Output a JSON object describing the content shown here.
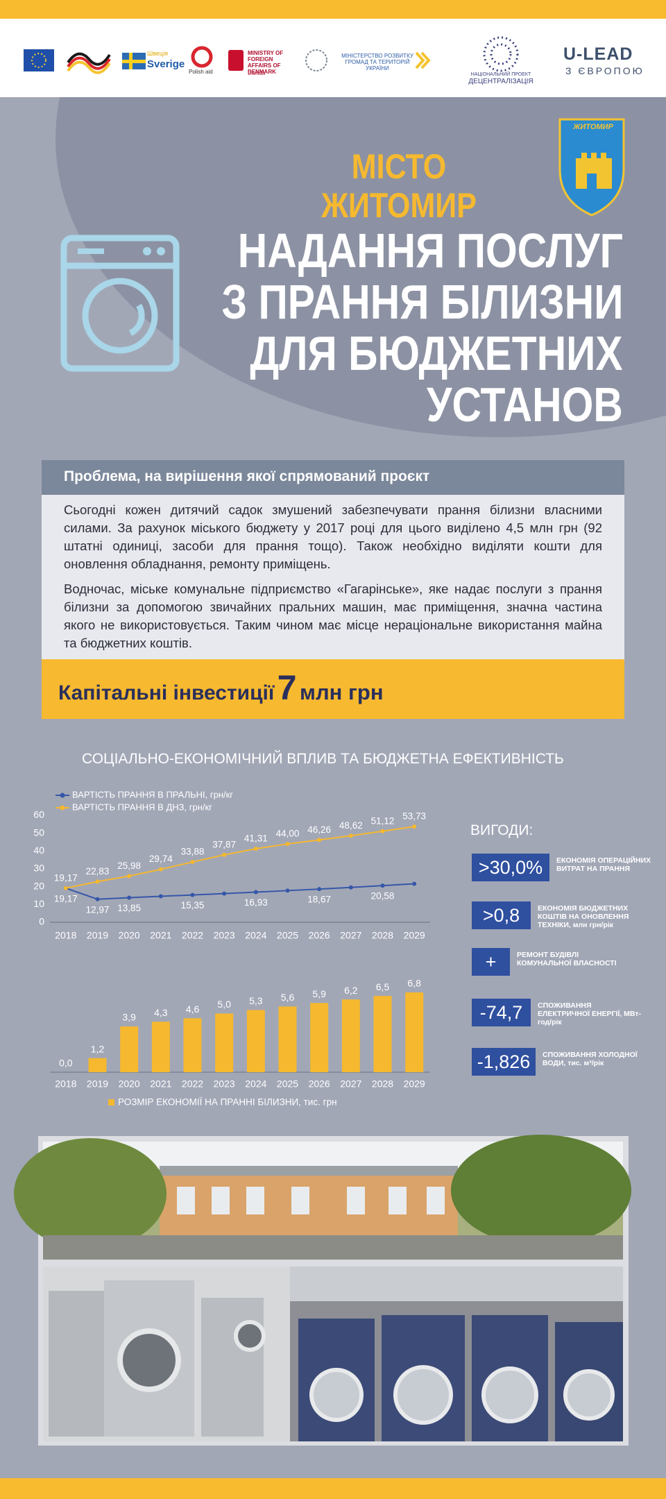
{
  "header": {
    "logos": {
      "sweden_ua": "Швеція",
      "sweden": "Sverige",
      "polish_aid": "Polish aid",
      "denmark": "MINISTRY OF FOREIGN AFFAIRS OF DENMARK",
      "danida": "Danida",
      "ministry_ua": "МІНІСТЕРСТВО РОЗВИТКУ ГРОМАД ТА ТЕРИТОРІЙ УКРАЇНИ",
      "decentralization_top": "НАЦІОНАЛЬНИЙ ПРОЕКТ",
      "decentralization": "ДЕЦЕНТРАЛІЗАЦІЯ",
      "ulead": "U-LEAD",
      "ulead_sub": "З ЄВРОПОЮ"
    }
  },
  "city": {
    "title": "МІСТО ЖИТОМИР",
    "arms_label": "ЖИТОМИР"
  },
  "title_lines": [
    "НАДАННЯ ПОСЛУГ",
    "З ПРАННЯ БІЛИЗНИ",
    "ДЛЯ БЮДЖЕТНИХ",
    "УСТАНОВ"
  ],
  "problem": {
    "heading": "Проблема, на вирішення якої спрямований проєкт",
    "paragraphs": [
      "Сьогодні кожен дитячий садок змушений забезпечувати прання білизни власними силами. За рахунок міського бюджету у 2017 році для цього виділено 4,5 млн грн (92 штатні одиниці, засоби для прання тощо). Також необхідно виділяти кошти для оновлення обладнання, ремонту приміщень.",
      "Водночас, міське комунальне підприємство «Гагарінське», яке надає послуги з прання білизни за допомогою звичайних пральних машин, має приміщення, значна частина якого не використовується. Таким чином має місце нераціональне використання майна та бюджетних коштів."
    ]
  },
  "investment": {
    "label": "Капітальні інвестиції",
    "amount": "7",
    "unit": "млн грн"
  },
  "impact_title": "СОЦІАЛЬНО-ЕКОНОМІЧНИЙ ВПЛИВ ТА БЮДЖЕТНА ЕФЕКТИВНІСТЬ",
  "chart_data": [
    {
      "type": "line",
      "categories": [
        "2018",
        "2019",
        "2020",
        "2021",
        "2022",
        "2023",
        "2024",
        "2025",
        "2026",
        "2027",
        "2028",
        "2029"
      ],
      "series": [
        {
          "name": "ВАРТІСТЬ ПРАННЯ В ПРАЛЬНІ, грн/кг",
          "color": "#3557a8",
          "values": [
            19.17,
            12.97,
            13.85,
            14.6,
            15.35,
            16.1,
            16.93,
            17.8,
            18.67,
            19.6,
            20.58,
            21.6
          ],
          "value_labels": [
            "19,17",
            "12,97",
            "13,85",
            null,
            "15,35",
            null,
            "16,93",
            null,
            "18,67",
            null,
            "20,58",
            null
          ]
        },
        {
          "name": "ВАРТІСТЬ ПРАННЯ В ДНЗ, грн/кг",
          "color": "#f5b82e",
          "values": [
            19.17,
            22.83,
            25.98,
            29.74,
            33.88,
            37.87,
            41.31,
            44.0,
            46.26,
            48.62,
            51.12,
            53.73
          ],
          "value_labels": [
            "19,17",
            "22,83",
            "25,98",
            "29,74",
            "33,88",
            "37,87",
            "41,31",
            "44,00",
            "46,26",
            "48,62",
            "51,12",
            "53,73"
          ]
        }
      ],
      "ylim": [
        0,
        60
      ],
      "yticks": [
        0,
        10,
        20,
        30,
        40,
        50,
        60
      ],
      "grid": false
    },
    {
      "type": "bar",
      "categories": [
        "2018",
        "2019",
        "2020",
        "2021",
        "2022",
        "2023",
        "2024",
        "2025",
        "2026",
        "2027",
        "2028",
        "2029"
      ],
      "series": [
        {
          "name": "РОЗМІР ЕКОНОМІЇ НА ПРАННІ БІЛИЗНИ, тис. грн",
          "color": "#f5b82e",
          "values": [
            0.0,
            1.2,
            3.9,
            4.3,
            4.6,
            5.0,
            5.3,
            5.6,
            5.9,
            6.2,
            6.5,
            6.8
          ],
          "value_labels": [
            "0,0",
            "1,2",
            "3,9",
            "4,3",
            "4,6",
            "5,0",
            "5,3",
            "5,6",
            "5,9",
            "6,2",
            "6,5",
            "6,8"
          ]
        }
      ]
    }
  ],
  "benefits": {
    "title": "ВИГОДИ:",
    "items": [
      {
        "value": ">30,0%",
        "label": "ЕКОНОМІЯ ОПЕРАЦІЙНИХ ВИТРАТ НА ПРАННЯ"
      },
      {
        "value": ">0,8",
        "label": "ЕКОНОМІЯ БЮДЖЕТНИХ КОШТІВ НА ОНОВЛЕННЯ ТЕХНІКИ, млн грн/рік"
      },
      {
        "value": "+",
        "label": "РЕМОНТ БУДІВЛІ КОМУНАЛЬНОЇ ВЛАСНОСТІ"
      },
      {
        "value": "-74,7",
        "label": "СПОЖИВАННЯ ЕЛЕКТРИЧНОЇ ЕНЕРГІЇ, МВт-год/рік"
      },
      {
        "value": "-1,826",
        "label": "СПОЖИВАННЯ ХОЛОДНОЇ ВОДИ, тис. м³/рік"
      }
    ]
  }
}
